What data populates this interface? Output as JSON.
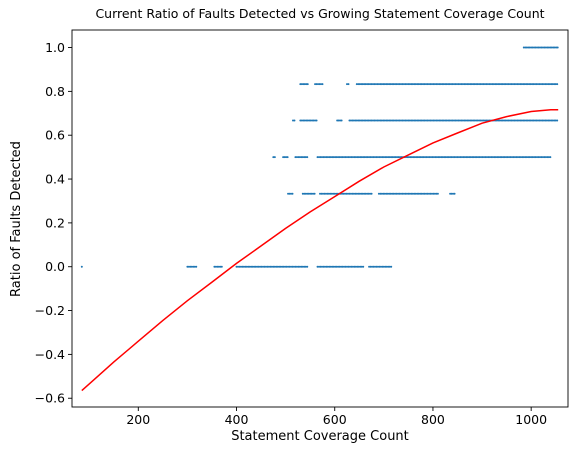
{
  "chart_data": {
    "type": "scatter",
    "title": "Current Ratio of Faults Detected vs Growing Statement Coverage Count",
    "xlabel": "Statement Coverage Count",
    "ylabel": "Ratio of Faults Detected",
    "xlim": [
      65,
      1075
    ],
    "ylim": [
      -0.64,
      1.08
    ],
    "xticks": [
      200,
      400,
      600,
      800,
      1000
    ],
    "yticks": [
      -0.6,
      -0.4,
      -0.2,
      0.0,
      0.2,
      0.4,
      0.6,
      0.8,
      1.0
    ],
    "xtick_labels": [
      "200",
      "400",
      "600",
      "800",
      "1000"
    ],
    "ytick_labels": [
      "−0.6",
      "−0.4",
      "−0.2",
      "0.0",
      "0.2",
      "0.4",
      "0.6",
      "0.8",
      "1.0"
    ],
    "grid": false,
    "scatter_color": "#1f77b4",
    "curve_color": "#ff0000",
    "scatter_bands": [
      {
        "y": 0.0,
        "segments": [
          [
            85,
            85
          ],
          [
            300,
            320
          ],
          [
            355,
            370
          ],
          [
            400,
            545
          ],
          [
            565,
            660
          ],
          [
            670,
            715
          ]
        ]
      },
      {
        "y": 0.333,
        "segments": [
          [
            505,
            515
          ],
          [
            535,
            560
          ],
          [
            570,
            675
          ],
          [
            690,
            810
          ],
          [
            835,
            845
          ]
        ]
      },
      {
        "y": 0.5,
        "segments": [
          [
            475,
            480
          ],
          [
            495,
            505
          ],
          [
            520,
            545
          ],
          [
            565,
            1040
          ]
        ]
      },
      {
        "y": 0.667,
        "segments": [
          [
            515,
            520
          ],
          [
            530,
            565
          ],
          [
            605,
            615
          ],
          [
            630,
            1055
          ]
        ]
      },
      {
        "y": 0.833,
        "segments": [
          [
            530,
            545
          ],
          [
            560,
            575
          ],
          [
            625,
            630
          ],
          [
            645,
            1055
          ]
        ]
      },
      {
        "y": 1.0,
        "segments": [
          [
            985,
            1055
          ]
        ]
      }
    ],
    "fit_curve": {
      "x": [
        85,
        150,
        200,
        250,
        300,
        350,
        400,
        450,
        500,
        550,
        600,
        650,
        700,
        750,
        800,
        850,
        900,
        950,
        1000,
        1040,
        1055
      ],
      "y": [
        -0.565,
        -0.435,
        -0.34,
        -0.245,
        -0.155,
        -0.07,
        0.015,
        0.095,
        0.175,
        0.25,
        0.32,
        0.39,
        0.455,
        0.51,
        0.565,
        0.61,
        0.655,
        0.685,
        0.708,
        0.716,
        0.716
      ]
    }
  }
}
